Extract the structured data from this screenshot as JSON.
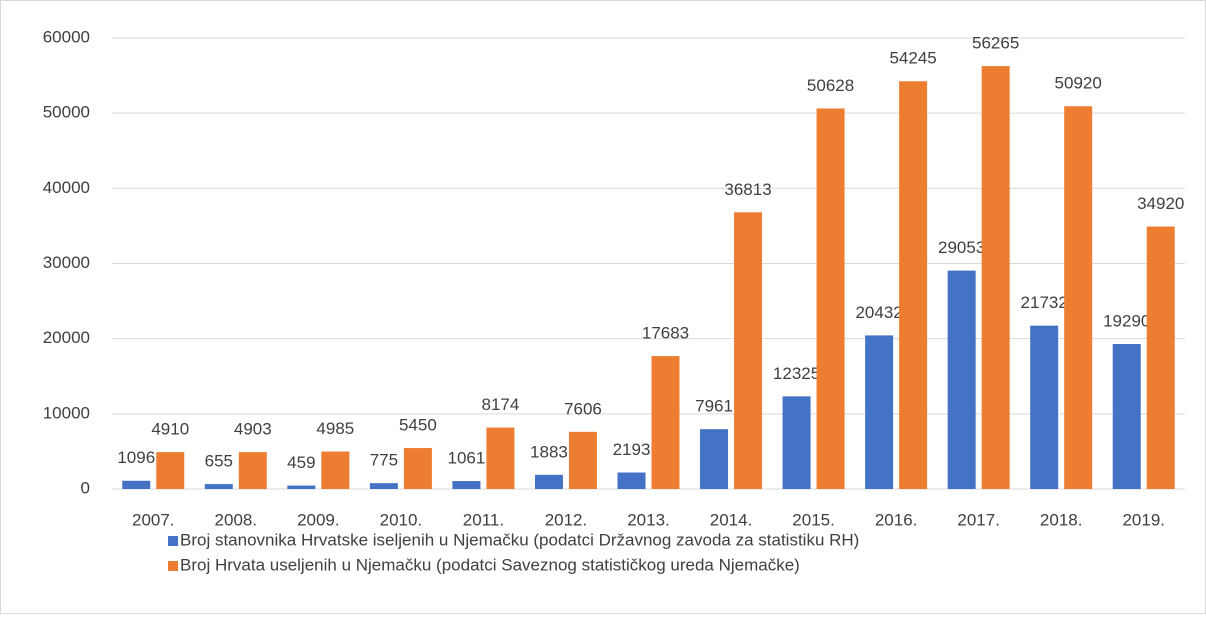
{
  "chart_data": {
    "type": "bar",
    "categories": [
      "2007.",
      "2008.",
      "2009.",
      "2010.",
      "2011.",
      "2012.",
      "2013.",
      "2014.",
      "2015.",
      "2016.",
      "2017.",
      "2018.",
      "2019."
    ],
    "series": [
      {
        "name": "Broj stanovnika Hrvatske iseljenih u Njemačku (podatci Državnog zavoda za statistiku RH)",
        "color": "#4472c4",
        "values": [
          1096,
          655,
          459,
          775,
          1061,
          1883,
          2193,
          7961,
          12325,
          20432,
          29053,
          21732,
          19290
        ]
      },
      {
        "name": "Broj Hrvata useljenih u Njemačku (podatci Saveznog statističkog ureda Njemačke)",
        "color": "#ed7d31",
        "values": [
          4910,
          4903,
          4985,
          5450,
          8174,
          7606,
          17683,
          36813,
          50628,
          54245,
          56265,
          50920,
          34920
        ]
      }
    ],
    "ylim": [
      0,
      60000
    ],
    "yticks": [
      0,
      10000,
      20000,
      30000,
      40000,
      50000,
      60000
    ],
    "grid": true,
    "legend": "bottom"
  }
}
